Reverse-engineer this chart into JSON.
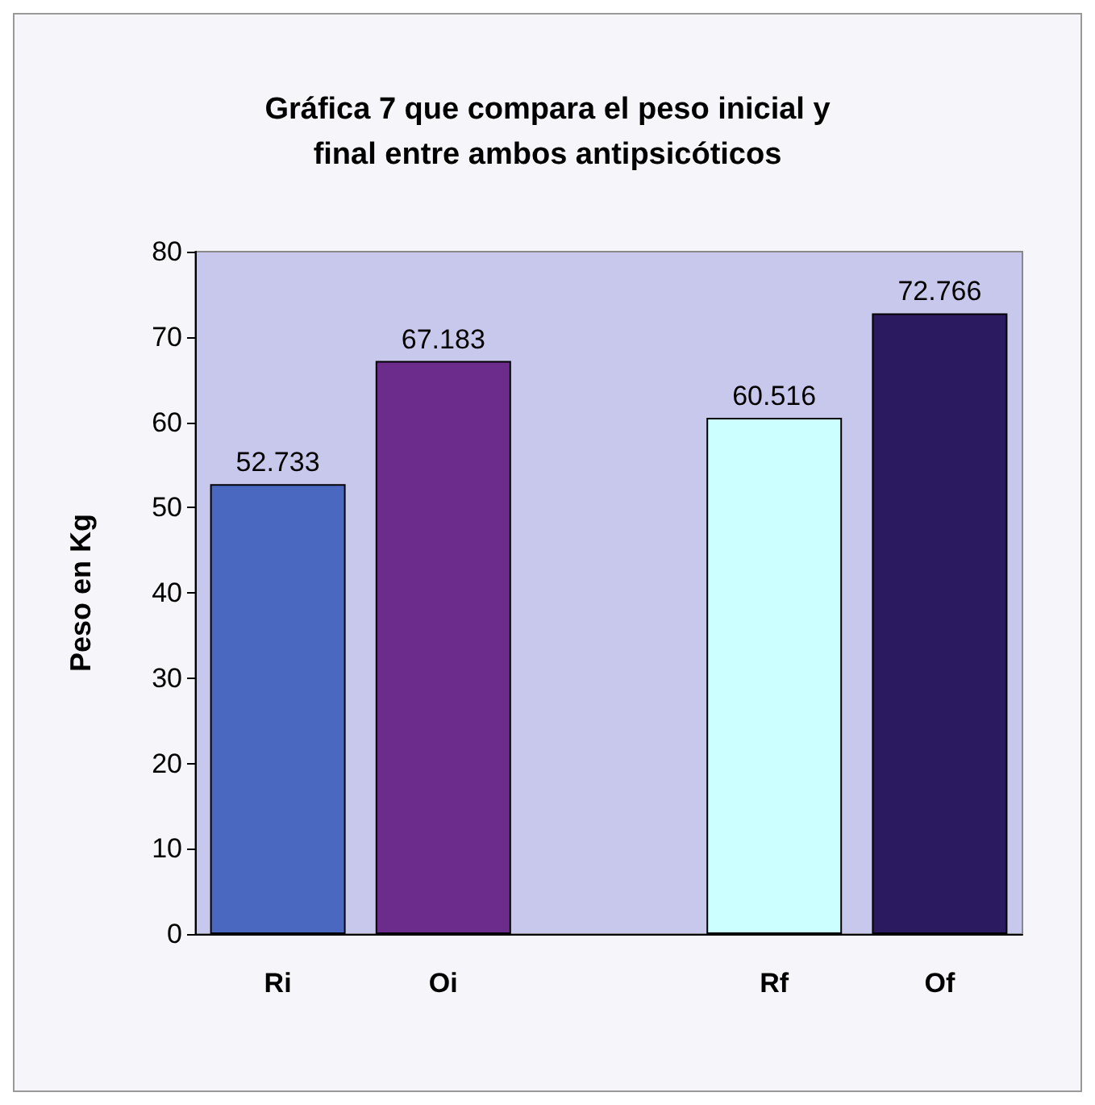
{
  "chart_data": {
    "type": "bar",
    "title": "Gráfica 7 que compara el peso inicial y\nfinal entre ambos antipsicóticos",
    "ylabel": "Peso en Kg",
    "categories": [
      "Ri",
      "Oi",
      null,
      "Rf",
      "Of"
    ],
    "values": [
      52.733,
      67.183,
      null,
      60.516,
      72.766
    ],
    "colors": [
      "#4a68c0",
      "#6c2c8c",
      null,
      "#ccffff",
      "#2c1a60"
    ],
    "ylim": [
      0,
      80
    ],
    "yticks": [
      0,
      10,
      20,
      30,
      40,
      50,
      60,
      70,
      80
    ],
    "grid": false,
    "data_labels": true
  }
}
